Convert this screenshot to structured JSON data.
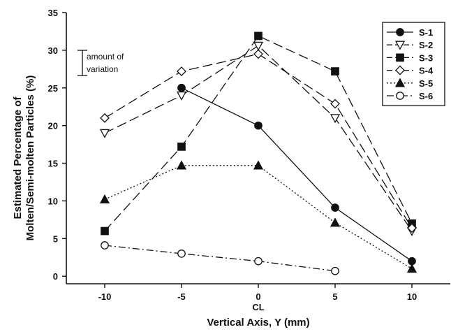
{
  "chart_data": {
    "type": "line",
    "xlabel": "Vertical Axis, Y (mm)",
    "ylabel_line1": "Estimated Percentage of",
    "ylabel_line2": "Molten/Semi-molten Particles (%)",
    "xlim": [
      -12.5,
      12.5
    ],
    "ylim": [
      -1,
      35
    ],
    "x_ticks": [
      -10,
      -5,
      0,
      5,
      10
    ],
    "x_tick_labels": [
      "-10",
      "-5",
      "0",
      "5",
      "10"
    ],
    "y_ticks": [
      0,
      5,
      10,
      15,
      20,
      25,
      30,
      35
    ],
    "center_label": "CL",
    "annotation_line1": "amount of",
    "annotation_line2": "variation",
    "legend_position": "top-right",
    "series": [
      {
        "name": "S-1",
        "x": [
          -5,
          0,
          5,
          10
        ],
        "values": [
          25,
          20,
          9.1,
          2
        ],
        "marker": "circle-filled",
        "dash": "solid"
      },
      {
        "name": "S-2",
        "x": [
          -10,
          -5,
          0,
          5,
          10
        ],
        "values": [
          19,
          24,
          30.6,
          21,
          6
        ],
        "marker": "triangle-down-open",
        "dash": "long"
      },
      {
        "name": "S-3",
        "x": [
          -10,
          -5,
          0,
          5,
          10
        ],
        "values": [
          6,
          17.2,
          31.9,
          27.2,
          7
        ],
        "marker": "square-filled",
        "dash": "long"
      },
      {
        "name": "S-4",
        "x": [
          -10,
          -5,
          0,
          5,
          10
        ],
        "values": [
          21,
          27.2,
          29.5,
          22.9,
          6.4
        ],
        "marker": "diamond-open",
        "dash": "long"
      },
      {
        "name": "S-5",
        "x": [
          -10,
          -5,
          0,
          5,
          10
        ],
        "values": [
          10.2,
          14.7,
          14.7,
          7.1,
          1
        ],
        "marker": "triangle-up-filled",
        "dash": "dotted"
      },
      {
        "name": "S-6",
        "x": [
          -10,
          -5,
          0,
          5
        ],
        "values": [
          4.1,
          3,
          2,
          0.7
        ],
        "marker": "circle-open",
        "dash": "dashdot"
      }
    ]
  }
}
